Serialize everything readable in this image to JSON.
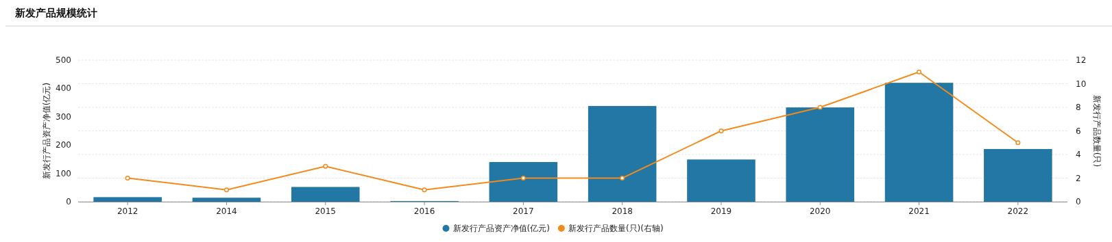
{
  "chart_data": {
    "type": "bar",
    "title": "新发产品规模统计",
    "ylabel": "新发行产品资产净值(亿元)",
    "y2label": "新发行产品数量(只)",
    "categories": [
      "2012",
      "2014",
      "2015",
      "2016",
      "2017",
      "2018",
      "2019",
      "2020",
      "2021",
      "2022"
    ],
    "series": [
      {
        "name": "新发行产品资产净值(亿元)",
        "color": "#2377a4",
        "values": [
          16,
          14,
          52,
          2,
          140,
          338,
          149,
          333,
          420,
          186
        ]
      },
      {
        "name": "新发行产品数量(只)(右轴)",
        "type": "line",
        "axis": "y2",
        "color": "#f28b1c",
        "marker": "circle",
        "line_style": "solid",
        "values": [
          2,
          1,
          3,
          1,
          2,
          2,
          6,
          8,
          11,
          5
        ]
      }
    ],
    "ylim": [
      0,
      500
    ],
    "yticks": [
      0,
      100,
      200,
      300,
      400,
      500
    ],
    "y2lim": [
      0,
      12
    ],
    "y2ticks": [
      0,
      2,
      4,
      6,
      8,
      10,
      12
    ],
    "grid": "y2",
    "legend": "bottom"
  }
}
